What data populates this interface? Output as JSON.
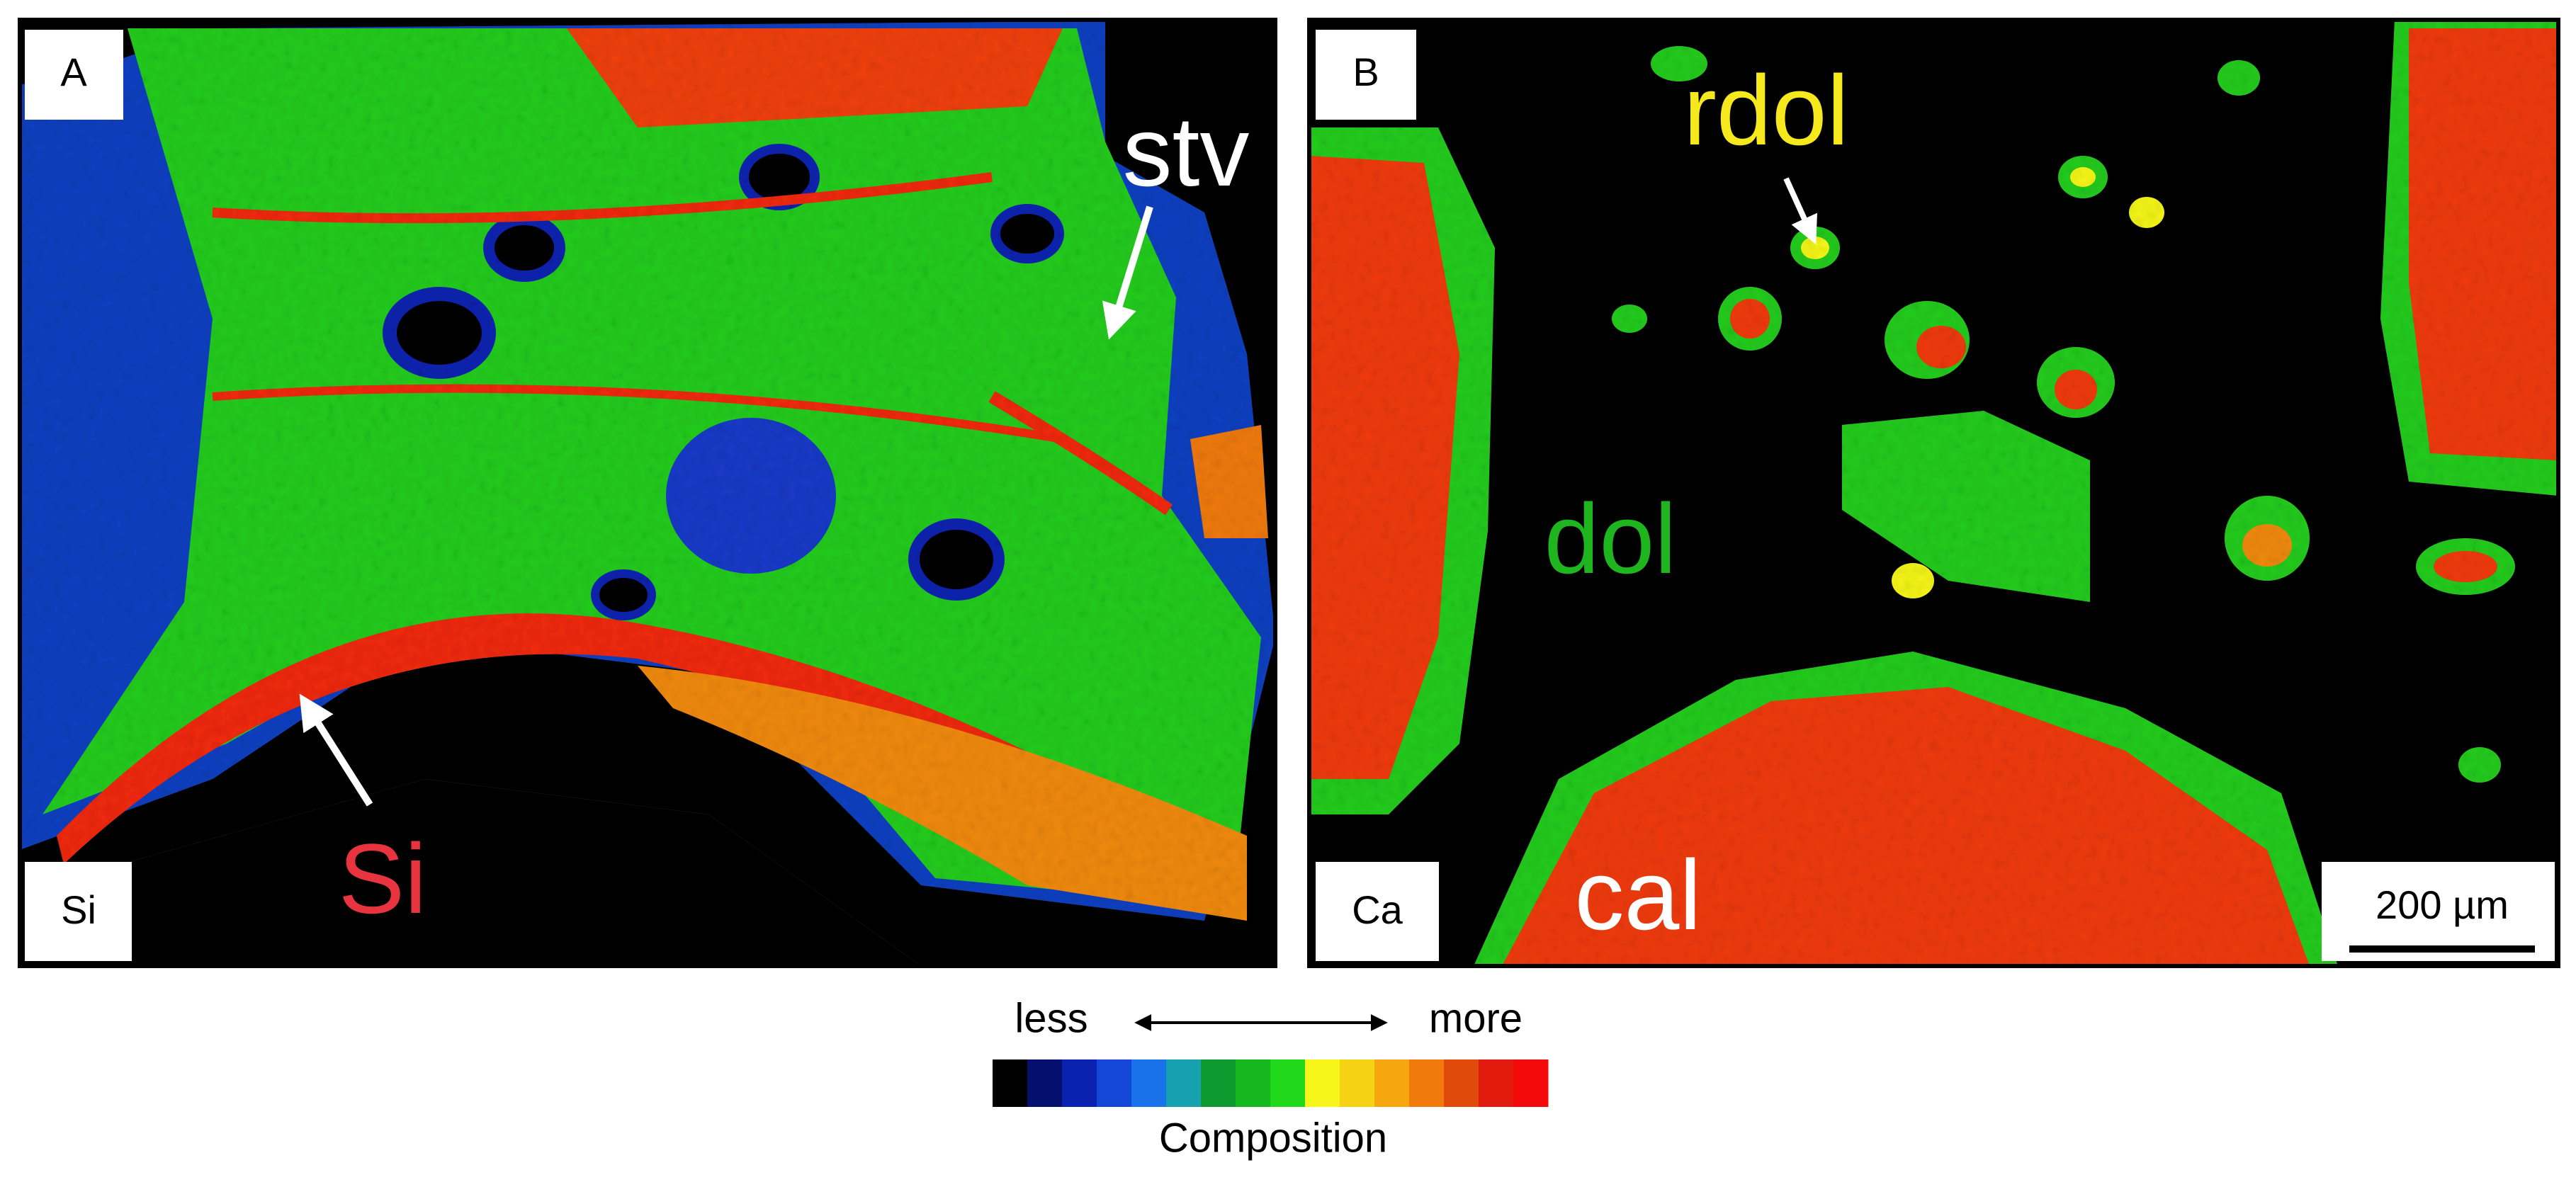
{
  "panels": [
    {
      "label": "A",
      "element": "Si",
      "annotations": [
        {
          "text": "stv",
          "color": "#ffffff"
        },
        {
          "text": "Si",
          "color": "#e8343f"
        }
      ]
    },
    {
      "label": "B",
      "element": "Ca",
      "annotations": [
        {
          "text": "rdol",
          "color": "#f5e81c"
        },
        {
          "text": "dol",
          "color": "#1fb51f"
        },
        {
          "text": "cal",
          "color": "#ffffff"
        }
      ],
      "scale_bar": "200 µm"
    }
  ],
  "colorbar": {
    "left": "less",
    "right": "more",
    "title": "Composition",
    "colors": [
      "#000000",
      "#05106e",
      "#0a22b0",
      "#1447d8",
      "#1a72ea",
      "#16a0b0",
      "#0e9a2e",
      "#14b81e",
      "#22d81a",
      "#f6f61a",
      "#f5d214",
      "#f6a60e",
      "#f27a0c",
      "#e04a0a",
      "#e01a0c",
      "#f40a0a"
    ]
  }
}
